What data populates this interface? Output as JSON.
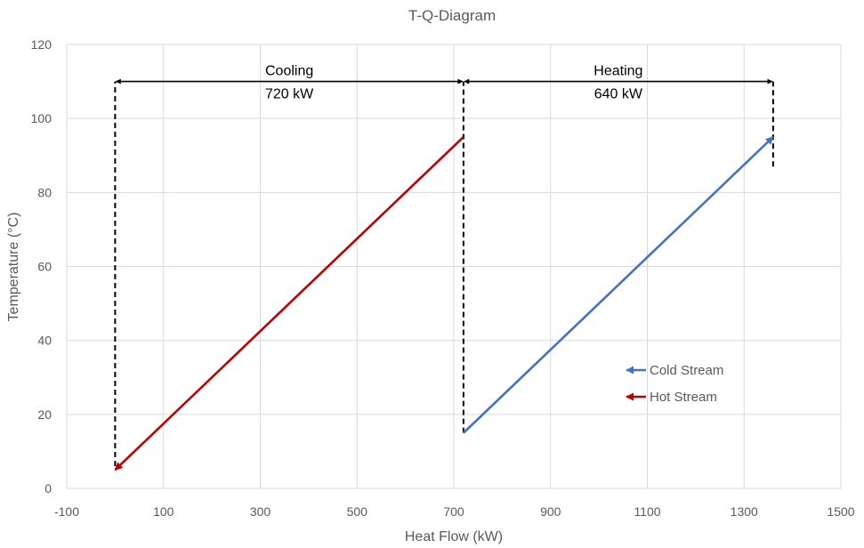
{
  "chart_data": {
    "type": "line",
    "title": "T-Q-Diagram",
    "xlabel": "Heat Flow (kW)",
    "ylabel": "Temperature (°C)",
    "xlim": [
      -100,
      1500
    ],
    "ylim": [
      0,
      120
    ],
    "x_ticks": [
      -100,
      100,
      300,
      500,
      700,
      900,
      1100,
      1300,
      1500
    ],
    "y_ticks": [
      0,
      20,
      40,
      60,
      80,
      100,
      120
    ],
    "grid": true,
    "legend_position": "right, lower-middle",
    "series": [
      {
        "name": "Cold Stream",
        "color": "#4472c4",
        "arrow_at": "end",
        "points": [
          {
            "x": 720,
            "y": 15
          },
          {
            "x": 1360,
            "y": 95
          }
        ]
      },
      {
        "name": "Hot Stream",
        "color": "#c00000",
        "arrow_at": "end",
        "points": [
          {
            "x": 720,
            "y": 95
          },
          {
            "x": 0,
            "y": 5
          }
        ]
      }
    ],
    "guide_lines": [
      {
        "x": 0,
        "y_from": 6,
        "y_to": 110
      },
      {
        "x": 720,
        "y_from": 15,
        "y_to": 110
      },
      {
        "x": 1360,
        "y_from": 87,
        "y_to": 110
      }
    ],
    "annotations": [
      {
        "label": "Cooling",
        "value": "720 kW",
        "x_from": 0,
        "x_to": 720,
        "y": 110
      },
      {
        "label": "Heating",
        "value": "640 kW",
        "x_from": 720,
        "x_to": 1360,
        "y": 110
      }
    ]
  }
}
